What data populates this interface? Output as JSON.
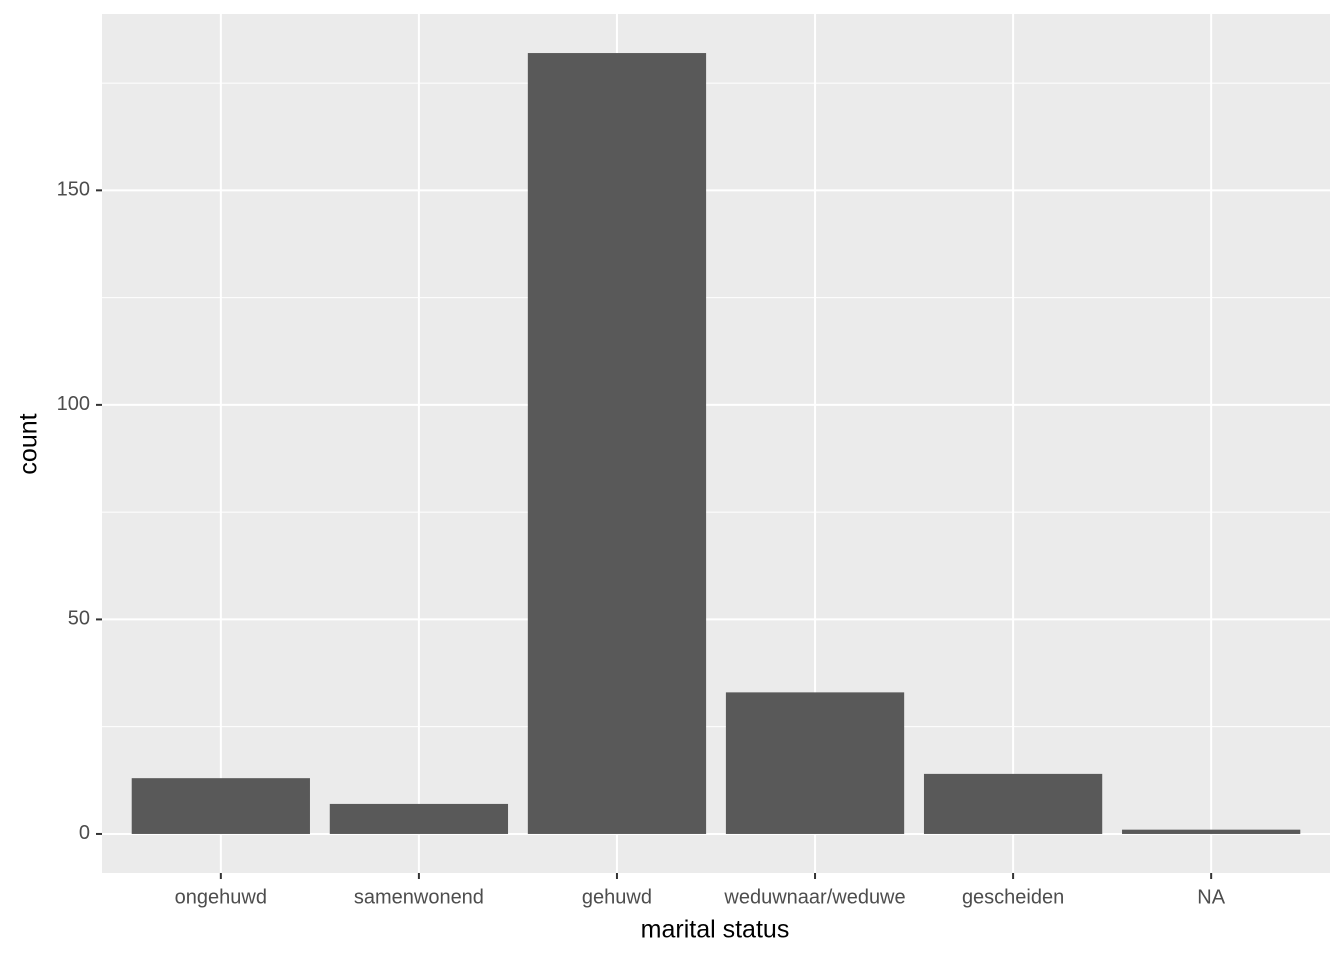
{
  "chart_data": {
    "type": "bar",
    "x_label": "marital status",
    "y_label": "count",
    "categories": [
      "ongehuwd",
      "samenwonend",
      "gehuwd",
      "weduwnaar/weduwe",
      "gescheiden",
      "NA"
    ],
    "values": [
      13,
      7,
      182,
      33,
      14,
      1
    ],
    "color": "#595959",
    "ylim": [
      -9.1,
      191.1
    ],
    "yticks": [
      0,
      50,
      100,
      150
    ],
    "minor_yticks": [
      25,
      75,
      125,
      175
    ],
    "grid": true
  }
}
